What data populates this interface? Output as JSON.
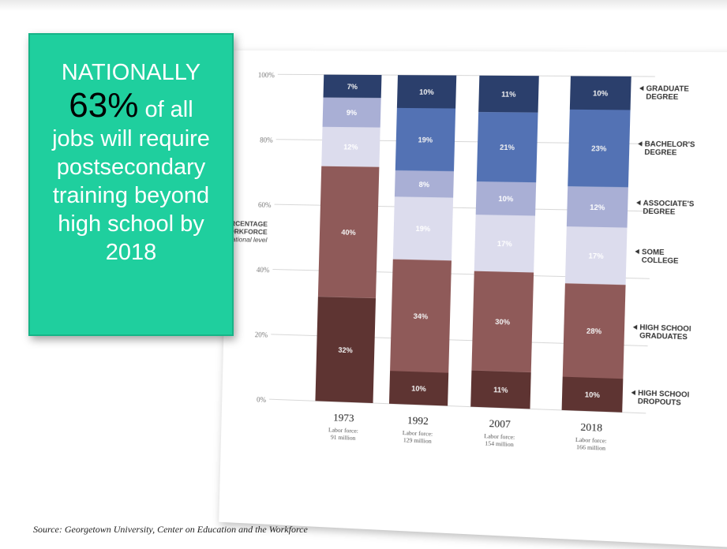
{
  "callout": {
    "line1": "NATIONALLY",
    "percent": "63%",
    "of_all": "of all",
    "line3": "jobs will require",
    "line4": "postsecondary",
    "line5": "training beyond",
    "line6": "high school by",
    "line7": "2018"
  },
  "source": "Source: Georgetown University, Center on Education and the Workforce",
  "chart_data": {
    "type": "bar",
    "stacked": true,
    "ylabel_lines": [
      "PERCENTAGE",
      "WORKFORCE",
      "educational level"
    ],
    "ylim": [
      0,
      100
    ],
    "yticks": [
      "0%",
      "20%",
      "40%",
      "60%",
      "80%",
      "100%"
    ],
    "categories": [
      "1973",
      "1992",
      "2007",
      "2018"
    ],
    "category_notes": [
      [
        "Labor force:",
        "91 million"
      ],
      [
        "Labor force:",
        "129 million"
      ],
      [
        "Labor force:",
        "154 million"
      ],
      [
        "Labor force:",
        "166 million"
      ]
    ],
    "series": [
      {
        "name": "HIGH SCHOOL DROPOUTS",
        "label_lines": [
          "HIGH SCHOOl",
          "DROPOUTS"
        ],
        "color": "#5e3432",
        "values": [
          32,
          10,
          11,
          10
        ]
      },
      {
        "name": "HIGH SCHOOL GRADUATES",
        "label_lines": [
          "HIGH SCHOOl",
          "GRADUATES"
        ],
        "color": "#8f5a59",
        "values": [
          40,
          34,
          30,
          28
        ]
      },
      {
        "name": "SOME COLLEGE",
        "label_lines": [
          "SOME",
          "COLLEGE"
        ],
        "color": "#dcdced",
        "values": [
          12,
          19,
          17,
          17
        ]
      },
      {
        "name": "ASSOCIATE'S DEGREE",
        "label_lines": [
          "ASSOCIATE'S",
          "DEGREE"
        ],
        "color": "#a9afd5",
        "values": [
          9,
          8,
          10,
          12
        ]
      },
      {
        "name": "BACHELOR'S DEGREE",
        "label_lines": [
          "BACHELOR'S",
          "DEGREE"
        ],
        "color": "#5372b4",
        "values": [
          0,
          19,
          21,
          23
        ]
      },
      {
        "name": "GRADUATE DEGREE",
        "label_lines": [
          "GRADUATE",
          "DEGREE"
        ],
        "color": "#2b3f6c",
        "values": [
          7,
          10,
          11,
          10
        ]
      }
    ],
    "segment_labels": [
      [
        "32%",
        "10%",
        "11%",
        "10%"
      ],
      [
        "40%",
        "34%",
        "30%",
        "28%"
      ],
      [
        "12%",
        "19%",
        "17%",
        "17%"
      ],
      [
        "9%",
        "8%",
        "10%",
        "12%"
      ],
      [
        "",
        "19%",
        "21%",
        "23%"
      ],
      [
        "7%",
        "10%",
        "11%",
        "10%"
      ]
    ],
    "grid": true,
    "legend_placement": "right"
  }
}
